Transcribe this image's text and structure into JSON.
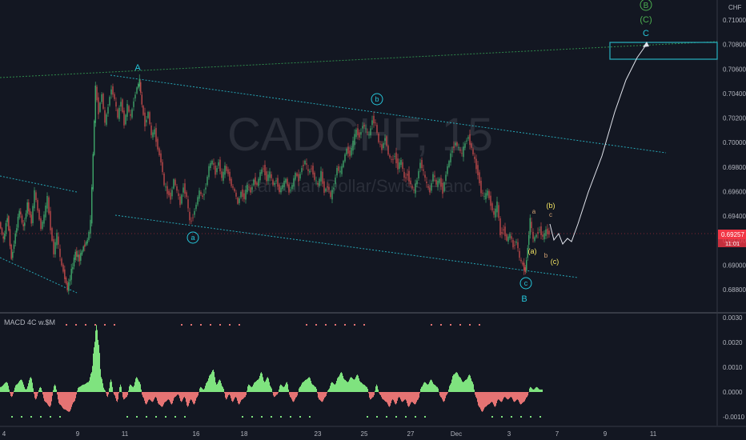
{
  "chart_data": {
    "type": "candlestick",
    "symbol_watermark": "CADCHF, 15",
    "watermark_desc": "Canadian Dollar/Swiss Franc",
    "currency": "CHF",
    "last_price": "0.69257",
    "countdown": "11:01",
    "price_axis": {
      "ylim": [
        0.6868,
        0.7116
      ],
      "ticks": [
        "0.71000",
        "0.70800",
        "0.70600",
        "0.70400",
        "0.70200",
        "0.70000",
        "0.69800",
        "0.69600",
        "0.69400",
        "0.69200",
        "0.69000",
        "0.68800"
      ]
    },
    "time_axis": {
      "ticks": [
        "4",
        "9",
        "11",
        "16",
        "18",
        "23",
        "25",
        "27",
        "Dec",
        "3",
        "7",
        "9",
        "11"
      ]
    },
    "macd": {
      "label": "MACD 4C w.$M",
      "ylim": [
        -0.0012,
        0.0033
      ],
      "ticks": [
        "0.0030",
        "0.0020",
        "0.0010",
        "0.0000",
        "-0.0010"
      ]
    },
    "price_path": [
      [
        0,
        0.6935
      ],
      [
        5,
        0.692
      ],
      [
        10,
        0.694
      ],
      [
        15,
        0.6905
      ],
      [
        20,
        0.6925
      ],
      [
        25,
        0.6945
      ],
      [
        30,
        0.693
      ],
      [
        35,
        0.695
      ],
      [
        40,
        0.6935
      ],
      [
        44,
        0.696
      ],
      [
        48,
        0.6945
      ],
      [
        52,
        0.693
      ],
      [
        56,
        0.694
      ],
      [
        60,
        0.6955
      ],
      [
        64,
        0.693
      ],
      [
        68,
        0.691
      ],
      [
        72,
        0.6925
      ],
      [
        76,
        0.6905
      ],
      [
        80,
        0.6895
      ],
      [
        85,
        0.688
      ],
      [
        90,
        0.6895
      ],
      [
        95,
        0.691
      ],
      [
        100,
        0.6905
      ],
      [
        105,
        0.6915
      ],
      [
        110,
        0.692
      ],
      [
        114,
        0.6935
      ],
      [
        117,
        0.699
      ],
      [
        120,
        0.7045
      ],
      [
        124,
        0.7025
      ],
      [
        128,
        0.704
      ],
      [
        132,
        0.7015
      ],
      [
        136,
        0.703
      ],
      [
        140,
        0.7045
      ],
      [
        144,
        0.7035
      ],
      [
        148,
        0.702
      ],
      [
        152,
        0.7035
      ],
      [
        156,
        0.7015
      ],
      [
        160,
        0.703
      ],
      [
        164,
        0.702
      ],
      [
        168,
        0.7035
      ],
      [
        172,
        0.7045
      ],
      [
        175,
        0.705
      ],
      [
        178,
        0.703
      ],
      [
        182,
        0.7015
      ],
      [
        186,
        0.7025
      ],
      [
        190,
        0.7005
      ],
      [
        194,
        0.701
      ],
      [
        198,
        0.6995
      ],
      [
        202,
        0.6985
      ],
      [
        206,
        0.6965
      ],
      [
        210,
        0.696
      ],
      [
        214,
        0.6955
      ],
      [
        218,
        0.697
      ],
      [
        222,
        0.696
      ],
      [
        226,
        0.695
      ],
      [
        230,
        0.6965
      ],
      [
        234,
        0.6955
      ],
      [
        238,
        0.6935
      ],
      [
        242,
        0.694
      ],
      [
        246,
        0.695
      ],
      [
        250,
        0.696
      ],
      [
        254,
        0.6955
      ],
      [
        258,
        0.6965
      ],
      [
        262,
        0.698
      ],
      [
        266,
        0.6985
      ],
      [
        270,
        0.6975
      ],
      [
        274,
        0.6985
      ],
      [
        278,
        0.697
      ],
      [
        282,
        0.698
      ],
      [
        286,
        0.6975
      ],
      [
        290,
        0.6965
      ],
      [
        294,
        0.696
      ],
      [
        298,
        0.695
      ],
      [
        302,
        0.696
      ],
      [
        306,
        0.6955
      ],
      [
        310,
        0.6965
      ],
      [
        314,
        0.696
      ],
      [
        318,
        0.697
      ],
      [
        322,
        0.6965
      ],
      [
        326,
        0.6975
      ],
      [
        330,
        0.698
      ],
      [
        334,
        0.697
      ],
      [
        338,
        0.6975
      ],
      [
        342,
        0.6965
      ],
      [
        346,
        0.697
      ],
      [
        350,
        0.696
      ],
      [
        354,
        0.6965
      ],
      [
        358,
        0.697
      ],
      [
        362,
        0.696
      ],
      [
        366,
        0.6965
      ],
      [
        370,
        0.6975
      ],
      [
        374,
        0.697
      ],
      [
        378,
        0.698
      ],
      [
        382,
        0.6985
      ],
      [
        386,
        0.6975
      ],
      [
        390,
        0.698
      ],
      [
        394,
        0.697
      ],
      [
        398,
        0.6965
      ],
      [
        402,
        0.6975
      ],
      [
        406,
        0.696
      ],
      [
        410,
        0.6965
      ],
      [
        414,
        0.6955
      ],
      [
        418,
        0.6965
      ],
      [
        422,
        0.698
      ],
      [
        426,
        0.6975
      ],
      [
        430,
        0.6985
      ],
      [
        434,
        0.6995
      ],
      [
        438,
        0.699
      ],
      [
        442,
        0.7
      ],
      [
        446,
        0.701
      ],
      [
        450,
        0.7005
      ],
      [
        454,
        0.7015
      ],
      [
        458,
        0.701
      ],
      [
        462,
        0.7005
      ],
      [
        466,
        0.702
      ],
      [
        470,
        0.7015
      ],
      [
        474,
        0.7
      ],
      [
        478,
        0.6995
      ],
      [
        482,
        0.7005
      ],
      [
        486,
        0.699
      ],
      [
        490,
        0.6985
      ],
      [
        494,
        0.699
      ],
      [
        498,
        0.698
      ],
      [
        502,
        0.6985
      ],
      [
        506,
        0.697
      ],
      [
        510,
        0.6975
      ],
      [
        514,
        0.6965
      ],
      [
        518,
        0.696
      ],
      [
        522,
        0.697
      ],
      [
        526,
        0.6985
      ],
      [
        530,
        0.6975
      ],
      [
        534,
        0.6965
      ],
      [
        538,
        0.696
      ],
      [
        542,
        0.6975
      ],
      [
        546,
        0.6965
      ],
      [
        550,
        0.697
      ],
      [
        554,
        0.696
      ],
      [
        558,
        0.6975
      ],
      [
        562,
        0.6985
      ],
      [
        566,
        0.6995
      ],
      [
        570,
        0.7
      ],
      [
        574,
        0.6995
      ],
      [
        578,
        0.699
      ],
      [
        582,
        0.7
      ],
      [
        586,
        0.7005
      ],
      [
        590,
        0.6995
      ],
      [
        594,
        0.6985
      ],
      [
        598,
        0.6975
      ],
      [
        602,
        0.696
      ],
      [
        606,
        0.6955
      ],
      [
        610,
        0.696
      ],
      [
        614,
        0.695
      ],
      [
        618,
        0.694
      ],
      [
        622,
        0.695
      ],
      [
        626,
        0.6925
      ],
      [
        630,
        0.693
      ],
      [
        634,
        0.692
      ],
      [
        638,
        0.6925
      ],
      [
        642,
        0.6915
      ],
      [
        646,
        0.692
      ],
      [
        650,
        0.6905
      ],
      [
        654,
        0.69
      ],
      [
        657,
        0.6895
      ],
      [
        660,
        0.6915
      ],
      [
        663,
        0.6937
      ],
      [
        667,
        0.692
      ],
      [
        671,
        0.6925
      ],
      [
        675,
        0.693
      ],
      [
        679,
        0.6922
      ],
      [
        683,
        0.6928
      ],
      [
        687,
        0.6926
      ]
    ],
    "macd_hist": [
      [
        0,
        0.0002
      ],
      [
        8,
        0.0004
      ],
      [
        14,
        -0.0002
      ],
      [
        20,
        0.0003
      ],
      [
        26,
        0.0005
      ],
      [
        32,
        0.0001
      ],
      [
        38,
        0.0006
      ],
      [
        44,
        -0.0003
      ],
      [
        50,
        0.0002
      ],
      [
        56,
        -0.0004
      ],
      [
        62,
        -0.0006
      ],
      [
        68,
        0.0003
      ],
      [
        74,
        -0.0005
      ],
      [
        80,
        -0.0007
      ],
      [
        86,
        -0.0008
      ],
      [
        92,
        -0.0004
      ],
      [
        98,
        0.0002
      ],
      [
        104,
        0.0003
      ],
      [
        110,
        0.0004
      ],
      [
        114,
        0.0008
      ],
      [
        117,
        0.0018
      ],
      [
        120,
        0.0027
      ],
      [
        123,
        0.0019
      ],
      [
        126,
        0.0006
      ],
      [
        130,
        0.0001
      ],
      [
        134,
        -0.0002
      ],
      [
        138,
        0.0005
      ],
      [
        142,
        -0.0001
      ],
      [
        146,
        -0.0004
      ],
      [
        150,
        0.0003
      ],
      [
        154,
        -0.0003
      ],
      [
        158,
        -0.0002
      ],
      [
        162,
        0.0003
      ],
      [
        166,
        0.0002
      ],
      [
        170,
        0.0006
      ],
      [
        174,
        0.0004
      ],
      [
        178,
        -0.0002
      ],
      [
        182,
        -0.0005
      ],
      [
        186,
        -0.0003
      ],
      [
        190,
        -0.0004
      ],
      [
        194,
        -0.0002
      ],
      [
        198,
        -0.0005
      ],
      [
        202,
        -0.0006
      ],
      [
        206,
        -0.0004
      ],
      [
        210,
        -0.0003
      ],
      [
        214,
        -0.0005
      ],
      [
        218,
        -0.0002
      ],
      [
        222,
        -0.0001
      ],
      [
        226,
        -0.0004
      ],
      [
        230,
        -0.0002
      ],
      [
        234,
        -0.0006
      ],
      [
        238,
        -0.0003
      ],
      [
        242,
        -0.0005
      ],
      [
        246,
        -0.0002
      ],
      [
        250,
        0.0002
      ],
      [
        254,
        0.0001
      ],
      [
        258,
        0.0004
      ],
      [
        262,
        0.0007
      ],
      [
        266,
        0.0009
      ],
      [
        270,
        0.0003
      ],
      [
        274,
        0.0005
      ],
      [
        278,
        0.0002
      ],
      [
        282,
        -0.0003
      ],
      [
        286,
        -0.0001
      ],
      [
        290,
        -0.0004
      ],
      [
        294,
        -0.0002
      ],
      [
        298,
        -0.0005
      ],
      [
        302,
        -0.0003
      ],
      [
        306,
        -0.0002
      ],
      [
        310,
        0.0003
      ],
      [
        314,
        0.0002
      ],
      [
        318,
        0.0004
      ],
      [
        322,
        0.0005
      ],
      [
        326,
        0.0008
      ],
      [
        330,
        0.0004
      ],
      [
        334,
        0.0006
      ],
      [
        338,
        0.0002
      ],
      [
        342,
        -0.0002
      ],
      [
        346,
        -0.0001
      ],
      [
        350,
        0.0003
      ],
      [
        354,
        0.0002
      ],
      [
        358,
        0.0004
      ],
      [
        362,
        -0.0002
      ],
      [
        366,
        -0.0004
      ],
      [
        370,
        -0.0002
      ],
      [
        374,
        0.0002
      ],
      [
        378,
        0.0004
      ],
      [
        382,
        0.0005
      ],
      [
        386,
        0.0006
      ],
      [
        390,
        0.0003
      ],
      [
        394,
        0.0002
      ],
      [
        398,
        -0.0003
      ],
      [
        402,
        -0.0004
      ],
      [
        406,
        -0.0002
      ],
      [
        410,
        0.0001
      ],
      [
        414,
        0.0004
      ],
      [
        418,
        0.0003
      ],
      [
        422,
        0.0006
      ],
      [
        426,
        0.0008
      ],
      [
        430,
        0.0005
      ],
      [
        434,
        0.0004
      ],
      [
        438,
        0.0006
      ],
      [
        442,
        0.0005
      ],
      [
        446,
        0.0007
      ],
      [
        450,
        0.0004
      ],
      [
        454,
        0.0003
      ],
      [
        458,
        0.0002
      ],
      [
        462,
        -0.0003
      ],
      [
        466,
        -0.0002
      ],
      [
        470,
        0.0003
      ],
      [
        474,
        -0.0001
      ],
      [
        478,
        -0.0003
      ],
      [
        482,
        -0.0004
      ],
      [
        486,
        -0.0006
      ],
      [
        490,
        -0.0003
      ],
      [
        494,
        -0.0005
      ],
      [
        498,
        -0.0002
      ],
      [
        502,
        -0.0004
      ],
      [
        506,
        -0.0003
      ],
      [
        510,
        -0.0006
      ],
      [
        514,
        -0.0004
      ],
      [
        518,
        -0.0005
      ],
      [
        522,
        -0.0003
      ],
      [
        526,
        0.0002
      ],
      [
        530,
        0.0004
      ],
      [
        534,
        0.0003
      ],
      [
        538,
        0.0005
      ],
      [
        542,
        0.0003
      ],
      [
        546,
        0.0002
      ],
      [
        550,
        -0.0002
      ],
      [
        554,
        -0.0004
      ],
      [
        558,
        -0.0001
      ],
      [
        562,
        0.0003
      ],
      [
        566,
        0.0007
      ],
      [
        570,
        0.0008
      ],
      [
        574,
        0.0006
      ],
      [
        578,
        0.0004
      ],
      [
        582,
        0.0005
      ],
      [
        586,
        0.0007
      ],
      [
        590,
        0.0004
      ],
      [
        594,
        -0.0002
      ],
      [
        598,
        -0.0006
      ],
      [
        602,
        -0.0008
      ],
      [
        606,
        -0.0006
      ],
      [
        610,
        -0.0005
      ],
      [
        614,
        -0.0004
      ],
      [
        618,
        -0.0006
      ],
      [
        622,
        -0.0003
      ],
      [
        626,
        -0.0004
      ],
      [
        630,
        -0.0002
      ],
      [
        634,
        -0.0003
      ],
      [
        638,
        -0.0002
      ],
      [
        642,
        -0.0004
      ],
      [
        646,
        -0.0003
      ],
      [
        650,
        -0.0005
      ],
      [
        654,
        -0.0004
      ],
      [
        658,
        -0.0002
      ],
      [
        662,
        0.0002
      ],
      [
        666,
        0.0001
      ],
      [
        670,
        0.0002
      ],
      [
        674,
        0.0001
      ],
      [
        678,
        0.0001
      ]
    ],
    "annotations": {
      "wave_A": "A",
      "wave_a": "a",
      "wave_b": "b",
      "wave_c": "c",
      "wave_B": "B",
      "wave_B_circle": "B",
      "wave_C_paren": "(C)",
      "wave_C": "C",
      "sub_a": "a",
      "sub_b_paren": "(b)",
      "sub_c": "c",
      "sub_a_paren": "(a)",
      "sub_b": "b",
      "sub_c_paren": "(c)"
    },
    "colors": {
      "background": "#131722",
      "candles": "#3fa66a",
      "candles_down": "#c14a4a",
      "channel": "#26a6b5",
      "trend": "#2f8a4b",
      "wave": "#26c6da",
      "macd_up": "#7fe37f",
      "macd_down": "#e57373",
      "price_label": "#f23645"
    }
  }
}
